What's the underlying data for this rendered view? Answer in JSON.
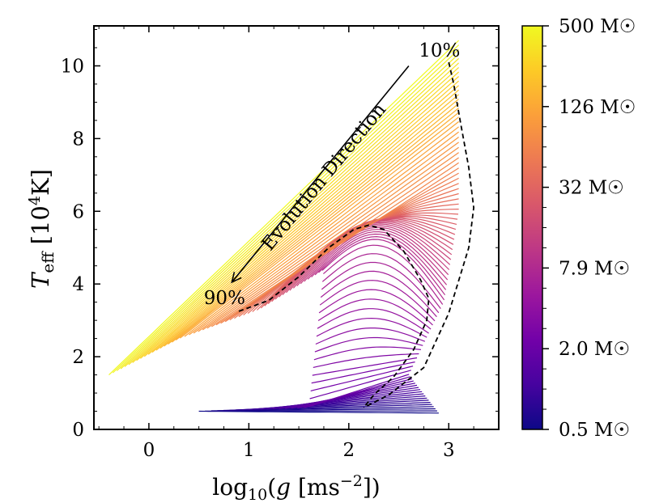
{
  "chart_data": {
    "type": "line",
    "title": "",
    "xlabel": "log₁₀(g [ms⁻²])",
    "ylabel": "T_eff [10⁴K]",
    "xlim": [
      -0.55,
      3.5
    ],
    "ylim": [
      0,
      11.1
    ],
    "x_ticks": [
      0,
      1,
      2,
      3
    ],
    "y_ticks": [
      0,
      2,
      4,
      6,
      8,
      10
    ],
    "grid": false,
    "colorbar": {
      "label_suffix": "M☉",
      "ticks": [
        "0.5",
        "2.0",
        "7.9",
        "32",
        "126",
        "500"
      ],
      "mass_range": [
        0.5,
        500
      ],
      "colormap": "plasma",
      "colormap_stops": [
        "#0d0887",
        "#46039f",
        "#7201a8",
        "#9c179e",
        "#bd3786",
        "#d8576b",
        "#ed7953",
        "#fb9f3a",
        "#fdca26",
        "#f0f921"
      ]
    },
    "track_count": 90,
    "representative_tracks": [
      {
        "mass": 0.5,
        "g_start": 2.9,
        "g_end": 0.5,
        "teff_start": 0.45,
        "teff_end": 0.5
      },
      {
        "mass": 2.0,
        "g_start": 2.6,
        "g_end": 1.6,
        "teff_start": 1.5,
        "teff_end": 0.6
      },
      {
        "mass": 7.9,
        "g_start": 2.95,
        "g_end": 1.75,
        "teff_start": 3.5,
        "teff_end": 4.4
      },
      {
        "mass": 32,
        "g_start": 3.1,
        "g_end": 1.1,
        "teff_start": 6.0,
        "teff_end": 3.3
      },
      {
        "mass": 126,
        "g_start": 3.1,
        "g_end": 0.3,
        "teff_start": 8.5,
        "teff_end": 2.5
      },
      {
        "mass": 500,
        "g_start": 3.1,
        "g_end": -0.4,
        "teff_start": 10.7,
        "teff_end": 1.5
      }
    ],
    "fraction_curves": [
      {
        "label": "10%",
        "points": [
          [
            3.0,
            10.1
          ],
          [
            3.05,
            9.5
          ],
          [
            3.12,
            8.4
          ],
          [
            3.2,
            7.2
          ],
          [
            3.25,
            6.1
          ],
          [
            3.2,
            5.0
          ],
          [
            3.0,
            3.2
          ],
          [
            2.75,
            1.7
          ],
          [
            2.4,
            0.95
          ],
          [
            2.15,
            0.6
          ]
        ]
      },
      {
        "label": "90%",
        "points": [
          [
            0.9,
            3.25
          ],
          [
            1.2,
            3.55
          ],
          [
            1.5,
            4.2
          ],
          [
            1.8,
            5.0
          ],
          [
            2.05,
            5.5
          ],
          [
            2.2,
            5.62
          ],
          [
            2.35,
            5.5
          ],
          [
            2.55,
            4.9
          ],
          [
            2.72,
            4.1
          ],
          [
            2.8,
            3.6
          ],
          [
            2.78,
            3.0
          ],
          [
            2.65,
            2.2
          ],
          [
            2.45,
            1.45
          ],
          [
            2.25,
            0.95
          ],
          [
            2.15,
            0.6
          ]
        ]
      }
    ],
    "annotations": [
      {
        "text": "10%",
        "x": 2.7,
        "y": 10.25
      },
      {
        "text": "90%",
        "x": 0.55,
        "y": 3.45
      },
      {
        "text": "Evolution Direction",
        "arrow_from": [
          2.6,
          10.0
        ],
        "arrow_to": [
          0.83,
          4.05
        ]
      }
    ]
  }
}
